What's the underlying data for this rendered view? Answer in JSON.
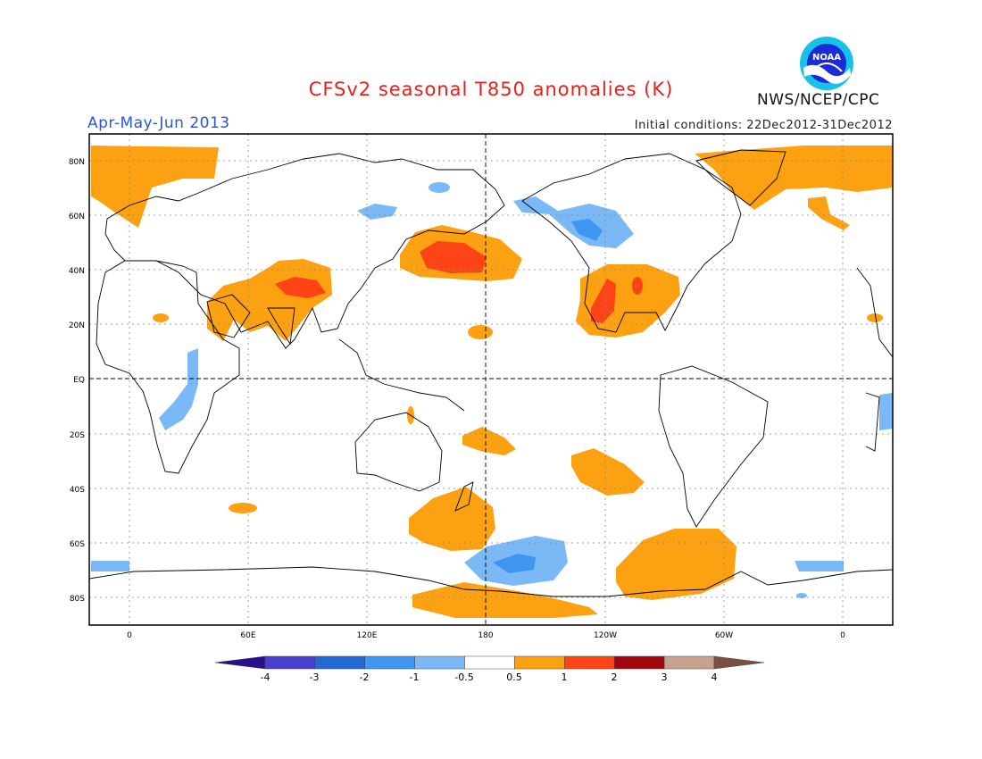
{
  "header": {
    "title": "CFSv2 seasonal T850 anomalies (K)",
    "season": "Apr-May-Jun 2013",
    "initial_conditions": "Initial conditions: 22Dec2012-31Dec2012",
    "agency": "NWS/NCEP/CPC",
    "logo_text": "NOAA",
    "logo_icon": "noaa-logo-icon"
  },
  "map": {
    "lat_labels": [
      "80N",
      "60N",
      "40N",
      "20N",
      "EQ",
      "20S",
      "40S",
      "60S",
      "80S"
    ],
    "lon_labels": [
      "0",
      "60E",
      "120E",
      "180",
      "120W",
      "60W",
      "0"
    ],
    "lon_range": [
      -20,
      380
    ],
    "lat_range": [
      -90,
      90
    ]
  },
  "legend": {
    "labels": [
      "-4",
      "-3",
      "-2",
      "-1",
      "-0.5",
      "0.5",
      "1",
      "2",
      "3",
      "4"
    ],
    "colors": [
      "#2a0f8c",
      "#4a3fd0",
      "#2268d6",
      "#3f96f0",
      "#7ab9f5",
      "#ffffff",
      "#fba112",
      "#fd4417",
      "#a1070c",
      "#c8a18c",
      "#7a5040"
    ]
  },
  "colors": {
    "warm_weak": "#fba112",
    "warm_mid": "#fd4417",
    "cool_weak": "#7ab9f5",
    "cool_mid": "#3f96f0"
  }
}
